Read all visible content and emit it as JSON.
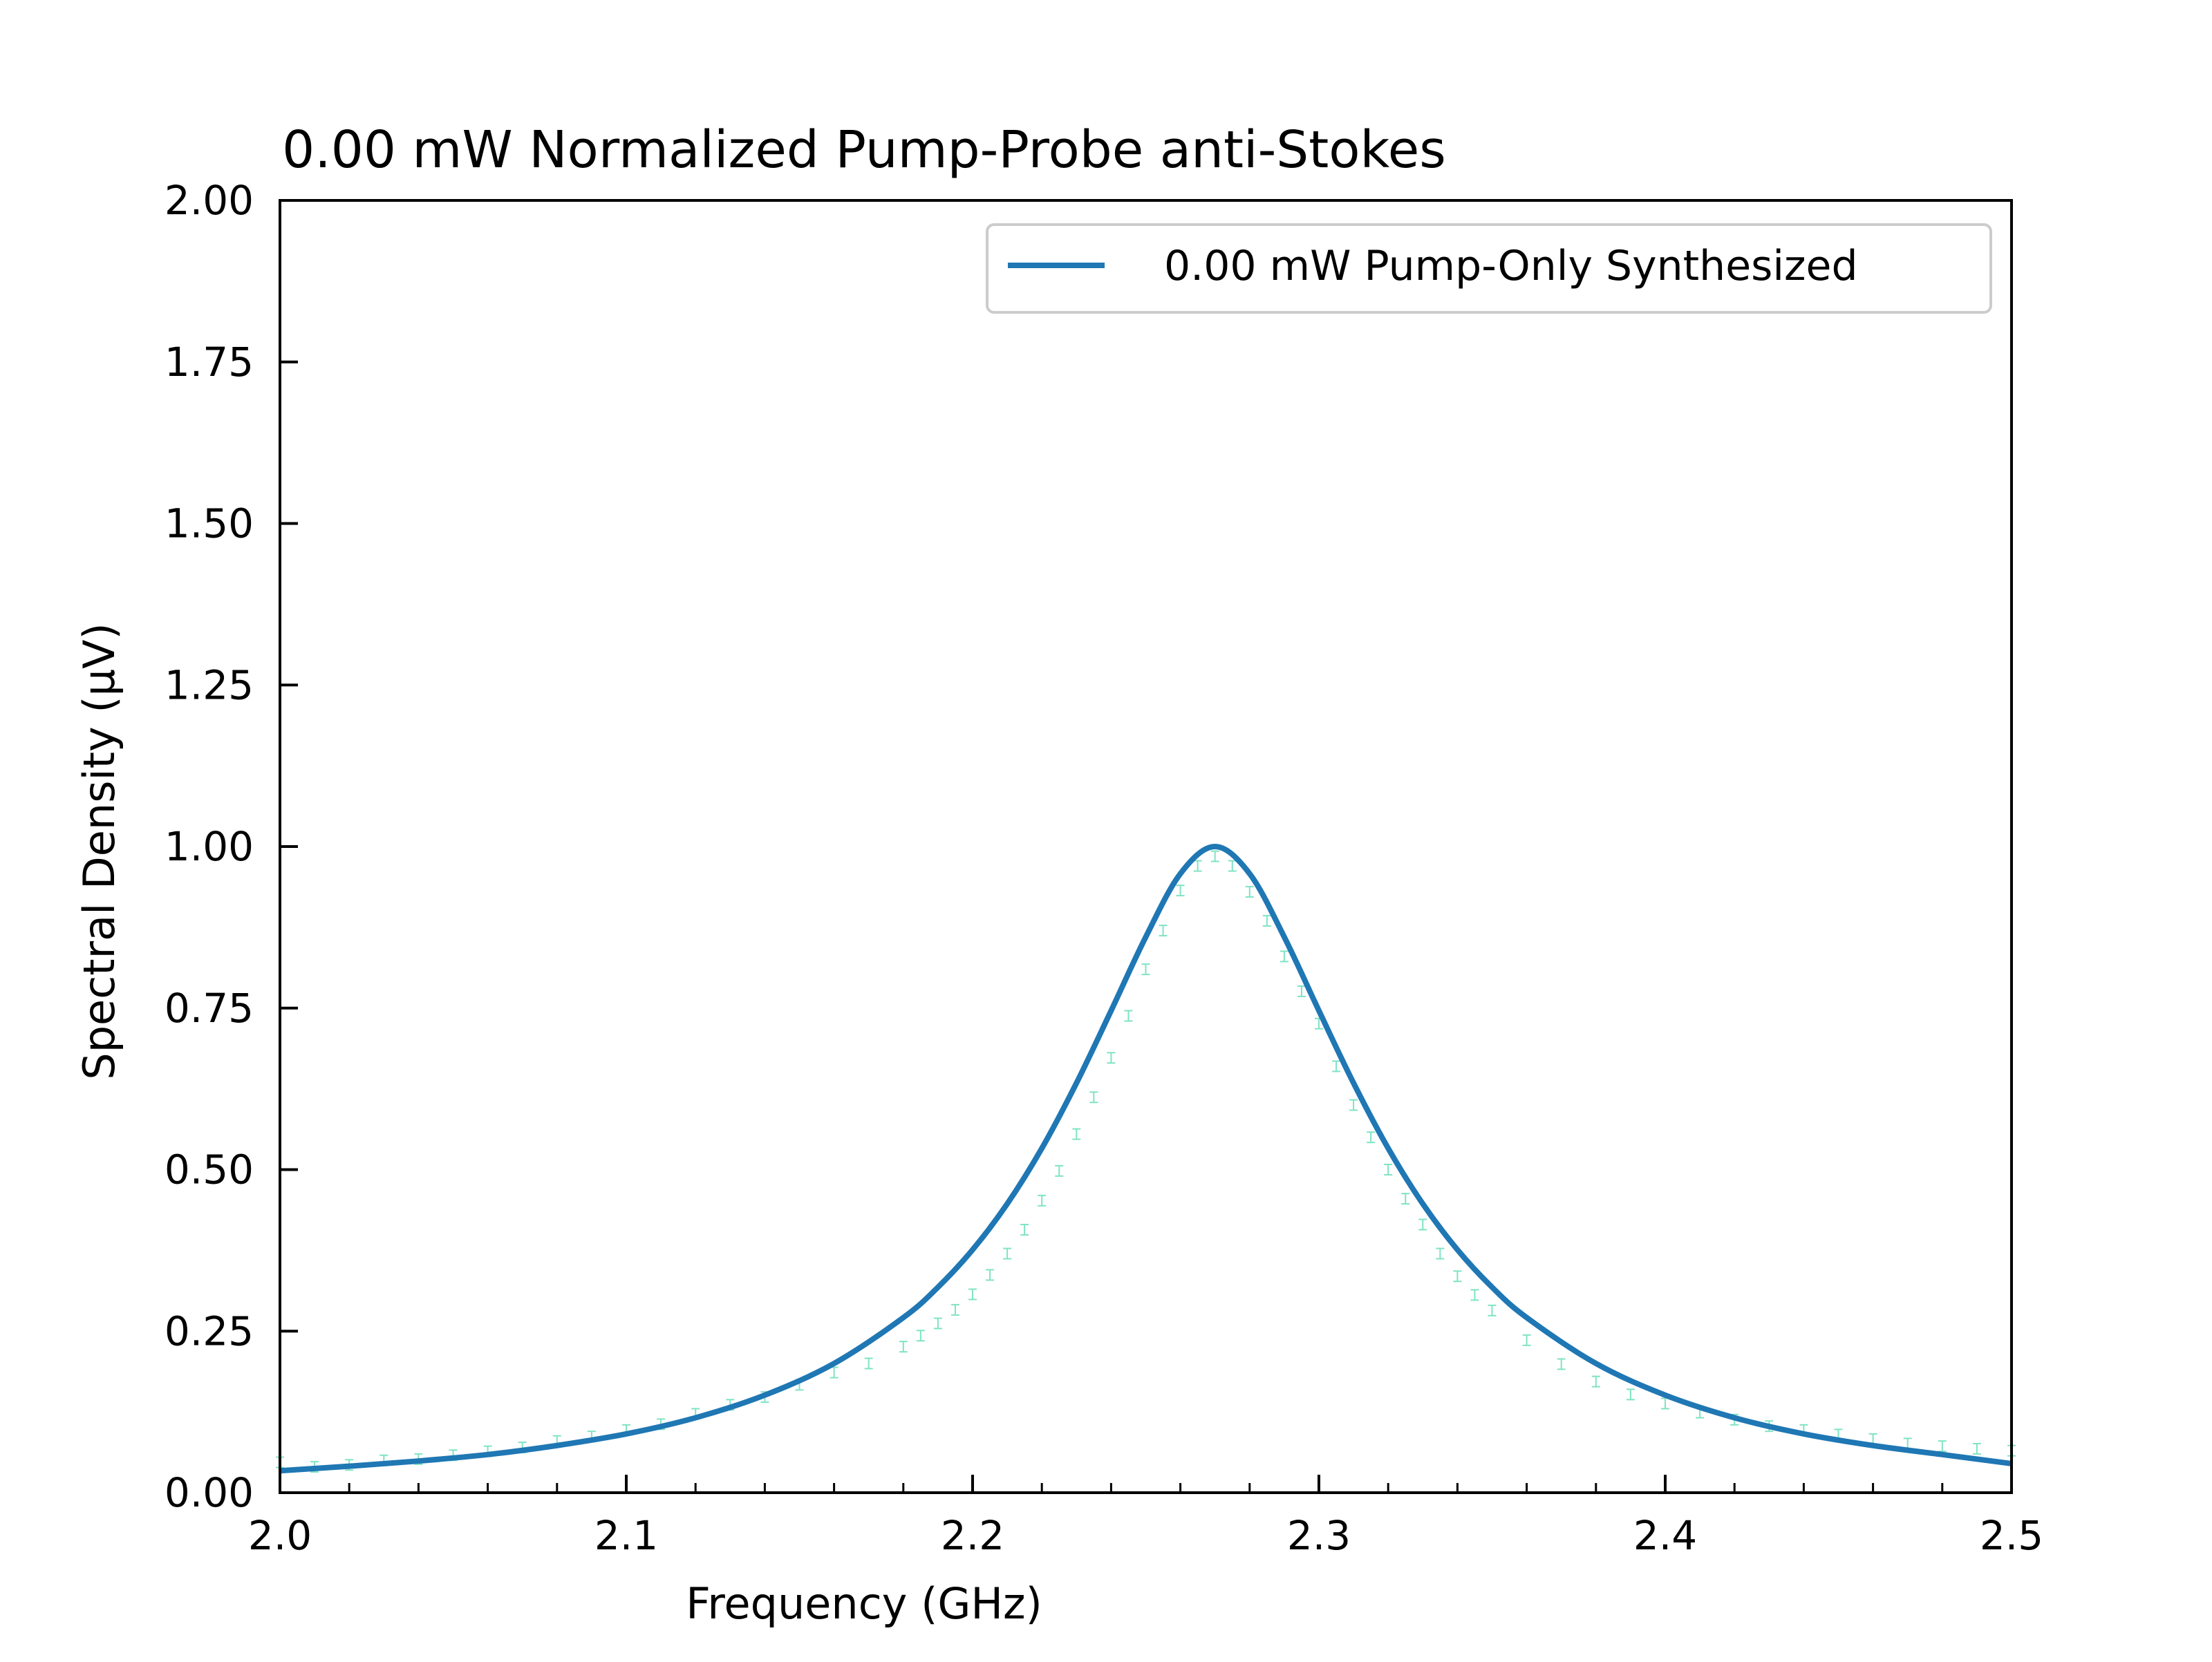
{
  "chart_data": {
    "type": "line",
    "title": "0.00 mW Normalized Pump-Probe anti-Stokes",
    "xlabel": "Frequency (GHz)",
    "ylabel": "Spectral Density (µV)",
    "xlim": [
      2.0,
      2.5
    ],
    "ylim": [
      0.0,
      2.0
    ],
    "x_ticks": [
      "2.0",
      "2.1",
      "2.2",
      "2.3",
      "2.4",
      "2.5"
    ],
    "y_ticks": [
      "0.00",
      "0.25",
      "0.50",
      "0.75",
      "1.00",
      "1.25",
      "1.50",
      "1.75",
      "2.00"
    ],
    "grid": false,
    "legend_position": "top-right",
    "series": [
      {
        "name": "0.00 mW Pump-Only Synthesized",
        "color": "#1f77b4",
        "style": "line",
        "x": [
          2.0,
          2.02,
          2.04,
          2.06,
          2.08,
          2.1,
          2.12,
          2.14,
          2.16,
          2.18,
          2.19,
          2.2,
          2.21,
          2.22,
          2.23,
          2.24,
          2.25,
          2.26,
          2.27,
          2.28,
          2.29,
          2.3,
          2.31,
          2.32,
          2.33,
          2.34,
          2.35,
          2.36,
          2.38,
          2.4,
          2.42,
          2.44,
          2.46,
          2.48,
          2.5
        ],
        "y": [
          0.034,
          0.041,
          0.049,
          0.059,
          0.073,
          0.091,
          0.116,
          0.151,
          0.2,
          0.271,
          0.318,
          0.376,
          0.447,
          0.533,
          0.634,
          0.746,
          0.86,
          0.958,
          1.0,
          0.958,
          0.86,
          0.746,
          0.634,
          0.533,
          0.447,
          0.376,
          0.318,
          0.271,
          0.2,
          0.151,
          0.116,
          0.091,
          0.073,
          0.059,
          0.045
        ]
      },
      {
        "name": "",
        "color": "#7fe3c4",
        "style": "errorbar",
        "x": [
          2.0,
          2.01,
          2.02,
          2.03,
          2.04,
          2.05,
          2.06,
          2.07,
          2.08,
          2.09,
          2.1,
          2.11,
          2.12,
          2.13,
          2.14,
          2.15,
          2.16,
          2.17,
          2.18,
          2.185,
          2.19,
          2.195,
          2.2,
          2.205,
          2.21,
          2.215,
          2.22,
          2.225,
          2.23,
          2.235,
          2.24,
          2.245,
          2.25,
          2.255,
          2.26,
          2.265,
          2.27,
          2.275,
          2.28,
          2.285,
          2.29,
          2.295,
          2.3,
          2.305,
          2.31,
          2.315,
          2.32,
          2.325,
          2.33,
          2.335,
          2.34,
          2.345,
          2.35,
          2.36,
          2.37,
          2.38,
          2.39,
          2.4,
          2.41,
          2.42,
          2.43,
          2.44,
          2.45,
          2.46,
          2.47,
          2.48,
          2.49,
          2.5
        ],
        "y": [
          0.047,
          0.04,
          0.043,
          0.05,
          0.052,
          0.058,
          0.064,
          0.07,
          0.08,
          0.087,
          0.097,
          0.106,
          0.122,
          0.136,
          0.148,
          0.167,
          0.186,
          0.2,
          0.226,
          0.243,
          0.262,
          0.283,
          0.307,
          0.337,
          0.37,
          0.407,
          0.452,
          0.498,
          0.555,
          0.612,
          0.673,
          0.738,
          0.81,
          0.87,
          0.932,
          0.97,
          0.985,
          0.97,
          0.93,
          0.885,
          0.83,
          0.776,
          0.726,
          0.66,
          0.6,
          0.55,
          0.5,
          0.455,
          0.415,
          0.37,
          0.335,
          0.306,
          0.282,
          0.236,
          0.199,
          0.172,
          0.152,
          0.138,
          0.124,
          0.113,
          0.103,
          0.097,
          0.09,
          0.083,
          0.076,
          0.072,
          0.068,
          0.065
        ],
        "err": 0.008
      }
    ]
  }
}
